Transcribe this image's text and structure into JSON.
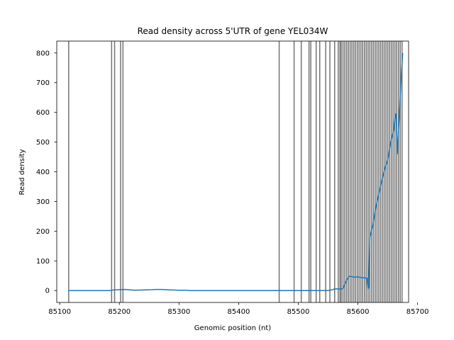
{
  "chart_data": {
    "type": "line",
    "title": "Read density across 5'UTR of gene YEL034W",
    "xlabel": "Genomic position (nt)",
    "ylabel": "Read density",
    "xlim": [
      85095,
      85685
    ],
    "ylim": [
      -40,
      840
    ],
    "xticks": [
      85100,
      85200,
      85300,
      85400,
      85500,
      85600,
      85700
    ],
    "yticks": [
      0,
      100,
      200,
      300,
      400,
      500,
      600,
      700,
      800
    ],
    "grid": false,
    "legend": "none",
    "series": [
      {
        "color": "#1f77b4",
        "x": [
          85115,
          85150,
          85185,
          85190,
          85200,
          85210,
          85220,
          85225,
          85240,
          85255,
          85260,
          85270,
          85280,
          85285,
          85290,
          85300,
          85310,
          85320,
          85330,
          85350,
          85400,
          85450,
          85500,
          85520,
          85540,
          85550,
          85555,
          85558,
          85560,
          85565,
          85570,
          85575,
          85580,
          85585,
          85590,
          85595,
          85600,
          85605,
          85610,
          85615,
          85617,
          85618,
          85620,
          85622,
          85625,
          85630,
          85635,
          85640,
          85645,
          85650,
          85655,
          85660,
          85662,
          85664,
          85666,
          85668,
          85670,
          85672,
          85675
        ],
        "y": [
          0,
          0,
          0,
          2,
          3,
          4,
          2,
          1,
          2,
          3,
          4,
          4,
          3,
          2,
          2,
          1,
          1,
          0,
          0,
          0,
          0,
          0,
          0,
          0,
          0,
          0,
          2,
          3,
          5,
          6,
          5,
          7,
          30,
          48,
          47,
          45,
          46,
          44,
          43,
          42,
          5,
          10,
          180,
          195,
          220,
          280,
          325,
          370,
          410,
          440,
          500,
          540,
          580,
          595,
          460,
          540,
          610,
          700,
          800
        ]
      }
    ],
    "vertical_lines": {
      "color": "#000000",
      "x": [
        85115,
        85187,
        85192,
        85202,
        85206,
        85468,
        85493,
        85505,
        85518,
        85521,
        85530,
        85536,
        85546,
        85553,
        85561,
        85567,
        85570,
        85572,
        85575,
        85578,
        85581,
        85584,
        85587,
        85590,
        85593,
        85596,
        85599,
        85602,
        85605,
        85608,
        85611,
        85614,
        85617,
        85620,
        85623,
        85626,
        85629,
        85632,
        85635,
        85638,
        85641,
        85644,
        85647,
        85650,
        85653,
        85656,
        85659,
        85662,
        85665,
        85668,
        85671,
        85674
      ]
    }
  }
}
